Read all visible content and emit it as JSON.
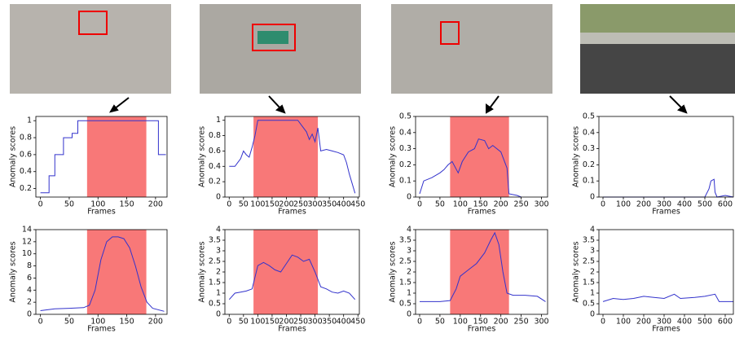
{
  "chart_data": [
    {
      "type": "line",
      "xlabel": "Frames",
      "ylabel": "Anomaly scores",
      "color": "#3333cc",
      "span_color": "#f87878",
      "x": [
        0,
        15,
        15,
        25,
        25,
        40,
        40,
        55,
        55,
        65,
        65,
        205,
        205,
        218
      ],
      "values": [
        0.15,
        0.15,
        0.35,
        0.35,
        0.6,
        0.6,
        0.8,
        0.8,
        0.85,
        0.85,
        1,
        1,
        0.6,
        0.6
      ],
      "shaded_span": [
        81,
        184
      ],
      "xlim": [
        -8,
        220
      ],
      "ylim": [
        0.1,
        1.05
      ],
      "xticks": [
        0,
        50,
        100,
        150,
        200
      ],
      "yticks": [
        0.2,
        0.4,
        0.6,
        0.8,
        1
      ]
    },
    {
      "type": "line",
      "xlabel": "Frames",
      "ylabel": "Anomaly scores",
      "color": "#3333cc",
      "span_color": "#f87878",
      "x": [
        0,
        25,
        50,
        75,
        85,
        95,
        105,
        115,
        125,
        135,
        145,
        155,
        165,
        175,
        185,
        195,
        215
      ],
      "values": [
        0.6,
        0.9,
        1,
        1.1,
        1.5,
        4,
        9,
        12,
        12.8,
        12.8,
        12.5,
        11,
        8,
        4.5,
        2,
        1,
        0.5
      ],
      "shaded_span": [
        81,
        184
      ],
      "xlim": [
        -8,
        220
      ],
      "ylim": [
        0,
        14
      ],
      "xticks": [
        0,
        50,
        100,
        150,
        200
      ],
      "yticks": [
        0,
        2,
        4,
        6,
        8,
        10,
        12,
        14
      ]
    },
    {
      "type": "line",
      "xlabel": "Frames",
      "ylabel": "Anomaly scores",
      "color": "#3333cc",
      "span_color": "#f87878",
      "x": [
        0,
        20,
        30,
        40,
        50,
        60,
        70,
        80,
        90,
        100,
        240,
        250,
        270,
        280,
        290,
        300,
        310,
        320,
        340,
        360,
        380,
        400,
        410,
        420,
        440
      ],
      "values": [
        0.4,
        0.4,
        0.45,
        0.5,
        0.6,
        0.55,
        0.52,
        0.65,
        0.8,
        1,
        1,
        0.95,
        0.85,
        0.75,
        0.82,
        0.72,
        0.9,
        0.6,
        0.62,
        0.6,
        0.58,
        0.55,
        0.45,
        0.3,
        0.05
      ],
      "shaded_span": [
        85,
        310
      ],
      "xlim": [
        -15,
        455
      ],
      "ylim": [
        0,
        1.05
      ],
      "xticks": [
        0,
        50,
        100,
        150,
        200,
        250,
        300,
        350,
        400,
        450
      ],
      "yticks": [
        0,
        0.2,
        0.4,
        0.6,
        0.8,
        1
      ]
    },
    {
      "type": "line",
      "xlabel": "Frames",
      "ylabel": "Anomaly scores",
      "color": "#3333cc",
      "span_color": "#f87878",
      "x": [
        0,
        20,
        40,
        60,
        80,
        100,
        120,
        140,
        160,
        180,
        200,
        220,
        240,
        260,
        280,
        300,
        320,
        340,
        360,
        380,
        400,
        420,
        440
      ],
      "values": [
        0.7,
        1,
        1.05,
        1.1,
        1.2,
        2.3,
        2.45,
        2.3,
        2.1,
        2,
        2.4,
        2.8,
        2.7,
        2.5,
        2.6,
        2,
        1.3,
        1.2,
        1.05,
        1,
        1.1,
        1,
        0.7
      ],
      "shaded_span": [
        85,
        310
      ],
      "xlim": [
        -15,
        455
      ],
      "ylim": [
        0,
        4
      ],
      "xticks": [
        0,
        50,
        100,
        150,
        200,
        250,
        300,
        350,
        400,
        450
      ],
      "yticks": [
        0,
        0.5,
        1,
        1.5,
        2,
        2.5,
        3,
        3.5,
        4
      ]
    },
    {
      "type": "line",
      "xlabel": "Frames",
      "ylabel": "Anomaly scores",
      "color": "#3333cc",
      "span_color": "#f87878",
      "x": [
        0,
        10,
        30,
        50,
        60,
        70,
        80,
        95,
        105,
        120,
        135,
        145,
        160,
        170,
        180,
        200,
        215,
        220,
        240,
        250
      ],
      "values": [
        0.02,
        0.1,
        0.12,
        0.15,
        0.17,
        0.2,
        0.22,
        0.15,
        0.22,
        0.28,
        0.3,
        0.36,
        0.35,
        0.3,
        0.32,
        0.28,
        0.18,
        0.02,
        0.01,
        0
      ],
      "shaded_span": [
        75,
        220
      ],
      "xlim": [
        -10,
        315
      ],
      "ylim": [
        0,
        0.5
      ],
      "xticks": [
        0,
        50,
        100,
        150,
        200,
        250,
        300
      ],
      "yticks": [
        0,
        0.1,
        0.2,
        0.3,
        0.4,
        0.5
      ]
    },
    {
      "type": "line",
      "xlabel": "Frames",
      "ylabel": "Anomaly scores",
      "color": "#3333cc",
      "span_color": "#f87878",
      "x": [
        0,
        50,
        75,
        90,
        100,
        120,
        140,
        160,
        175,
        185,
        195,
        205,
        215,
        230,
        260,
        290,
        310
      ],
      "values": [
        0.6,
        0.6,
        0.65,
        1.2,
        1.8,
        2.1,
        2.4,
        2.9,
        3.5,
        3.85,
        3.3,
        2,
        1,
        0.9,
        0.9,
        0.85,
        0.6
      ],
      "shaded_span": [
        75,
        220
      ],
      "xlim": [
        -10,
        315
      ],
      "ylim": [
        0,
        4
      ],
      "xticks": [
        0,
        50,
        100,
        150,
        200,
        250,
        300
      ],
      "yticks": [
        0,
        0.5,
        1,
        1.5,
        2,
        2.5,
        3,
        3.5,
        4
      ]
    },
    {
      "type": "line",
      "xlabel": "Frames",
      "ylabel": "Anomaly scores",
      "color": "#3333cc",
      "x": [
        0,
        500,
        520,
        530,
        545,
        550,
        560,
        600,
        640
      ],
      "values": [
        0,
        0,
        0.05,
        0.1,
        0.11,
        0.03,
        0,
        0.01,
        0
      ],
      "xlim": [
        -20,
        640
      ],
      "ylim": [
        0,
        0.5
      ],
      "xticks": [
        0,
        100,
        200,
        300,
        400,
        500,
        600
      ],
      "yticks": [
        0,
        0.1,
        0.2,
        0.3,
        0.4,
        0.5
      ]
    },
    {
      "type": "line",
      "xlabel": "Frames",
      "ylabel": "Anomaly scores",
      "color": "#3333cc",
      "x": [
        0,
        50,
        100,
        150,
        200,
        250,
        300,
        350,
        380,
        450,
        500,
        550,
        570,
        640
      ],
      "values": [
        0.6,
        0.75,
        0.7,
        0.75,
        0.85,
        0.8,
        0.75,
        0.95,
        0.75,
        0.8,
        0.85,
        0.95,
        0.6,
        0.6
      ],
      "xlim": [
        -20,
        640
      ],
      "ylim": [
        0,
        4
      ],
      "xticks": [
        0,
        100,
        200,
        300,
        400,
        500,
        600
      ],
      "yticks": [
        0,
        0.5,
        1,
        1.5,
        2,
        2.5,
        3,
        3.5,
        4
      ]
    }
  ]
}
